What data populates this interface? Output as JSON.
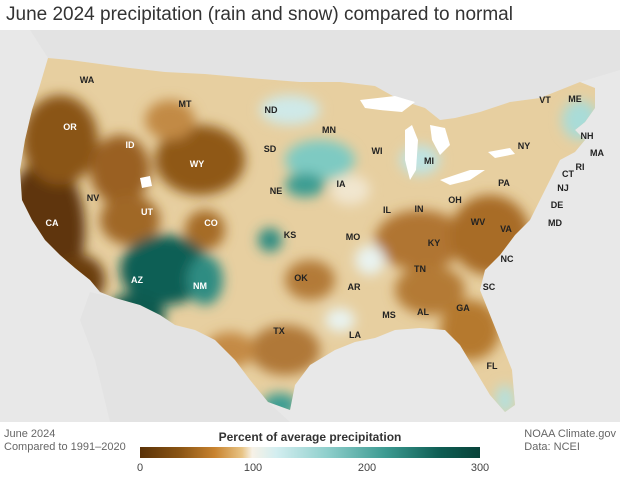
{
  "title": "June 2024 precipitation (rain and snow) compared to normal",
  "footer": {
    "date": "June 2024",
    "baseline": "Compared to 1991–2020",
    "source1": "NOAA Climate.gov",
    "source2": "Data: NCEI"
  },
  "legend": {
    "title": "Percent of average precipitation",
    "ticks": [
      "0",
      "100",
      "200",
      "300"
    ],
    "tick_values": [
      0,
      100,
      200,
      300
    ],
    "range": [
      0,
      300
    ],
    "colors": {
      "dry": "#5a3208",
      "normal": "#f7f1e6",
      "wet": "#074239"
    }
  },
  "states": [
    {
      "abbr": "WA"
    },
    {
      "abbr": "OR"
    },
    {
      "abbr": "CA"
    },
    {
      "abbr": "ID"
    },
    {
      "abbr": "NV"
    },
    {
      "abbr": "MT"
    },
    {
      "abbr": "WY"
    },
    {
      "abbr": "UT"
    },
    {
      "abbr": "AZ"
    },
    {
      "abbr": "CO"
    },
    {
      "abbr": "NM"
    },
    {
      "abbr": "ND"
    },
    {
      "abbr": "SD"
    },
    {
      "abbr": "NE"
    },
    {
      "abbr": "KS"
    },
    {
      "abbr": "OK"
    },
    {
      "abbr": "TX"
    },
    {
      "abbr": "MN"
    },
    {
      "abbr": "IA"
    },
    {
      "abbr": "MO"
    },
    {
      "abbr": "AR"
    },
    {
      "abbr": "LA"
    },
    {
      "abbr": "WI"
    },
    {
      "abbr": "IL"
    },
    {
      "abbr": "MS"
    },
    {
      "abbr": "MI"
    },
    {
      "abbr": "IN"
    },
    {
      "abbr": "KY"
    },
    {
      "abbr": "TN"
    },
    {
      "abbr": "AL"
    },
    {
      "abbr": "OH"
    },
    {
      "abbr": "WV"
    },
    {
      "abbr": "GA"
    },
    {
      "abbr": "FL"
    },
    {
      "abbr": "SC"
    },
    {
      "abbr": "NC"
    },
    {
      "abbr": "VA"
    },
    {
      "abbr": "PA"
    },
    {
      "abbr": "NY"
    },
    {
      "abbr": "MD"
    },
    {
      "abbr": "DE"
    },
    {
      "abbr": "NJ"
    },
    {
      "abbr": "CT"
    },
    {
      "abbr": "RI"
    },
    {
      "abbr": "MA"
    },
    {
      "abbr": "VT"
    },
    {
      "abbr": "NH"
    },
    {
      "abbr": "ME"
    }
  ]
}
